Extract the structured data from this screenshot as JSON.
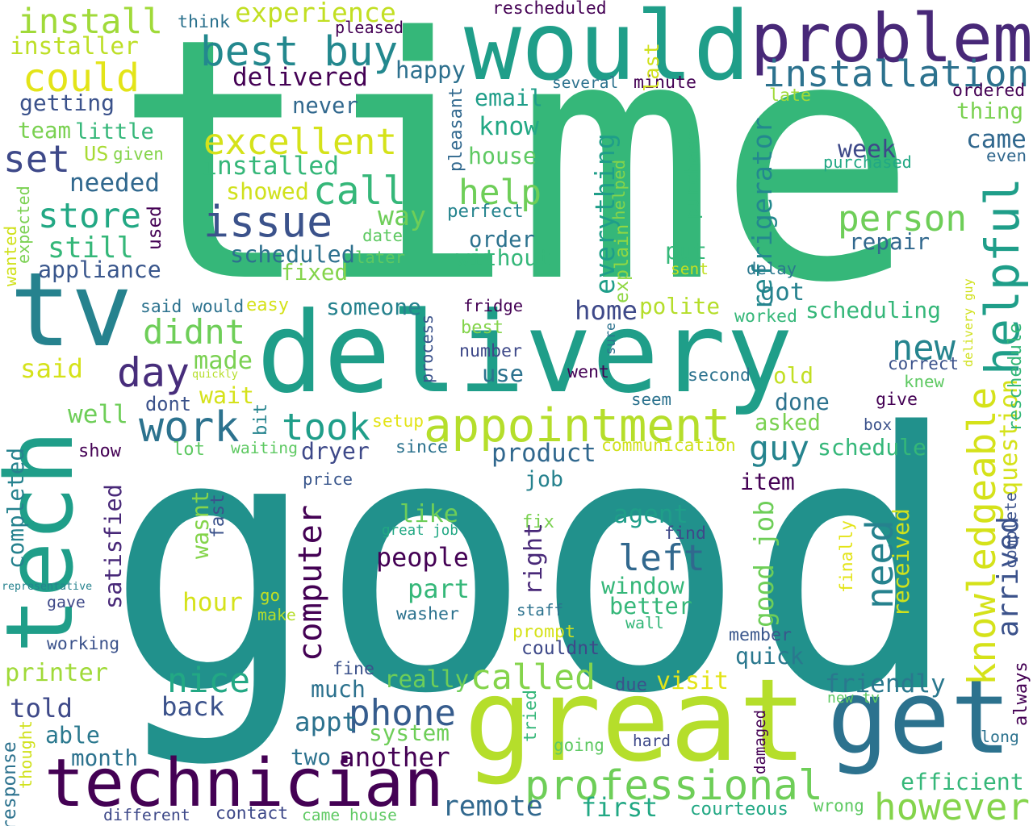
{
  "words": [
    {
      "text": "time",
      "color": "#35b779"
    },
    {
      "text": "good",
      "color": "#21918c"
    },
    {
      "text": "delivery",
      "color": "#1f9e89"
    },
    {
      "text": "great",
      "color": "#b5de2b"
    },
    {
      "text": "would",
      "color": "#1f9e89"
    },
    {
      "text": "problem",
      "color": "#482878"
    },
    {
      "text": "tech",
      "color": "#1f9e89"
    },
    {
      "text": "tv",
      "color": "#26828e"
    },
    {
      "text": "technician",
      "color": "#440154"
    },
    {
      "text": "get",
      "color": "#2c728e"
    },
    {
      "text": "appointment",
      "color": "#b5de2b"
    },
    {
      "text": "professional",
      "color": "#6ece58"
    },
    {
      "text": "installation",
      "color": "#2c728e"
    },
    {
      "text": "helpful",
      "color": "#1f9e89"
    },
    {
      "text": "issue",
      "color": "#3b528b"
    },
    {
      "text": "install",
      "color": "#a0da39"
    },
    {
      "text": "best buy",
      "color": "#23888e"
    },
    {
      "text": "could",
      "color": "#e3e418"
    },
    {
      "text": "excellent",
      "color": "#d5e21a"
    },
    {
      "text": "call",
      "color": "#35b779"
    },
    {
      "text": "person",
      "color": "#6ece58"
    },
    {
      "text": "knowledgeable",
      "color": "#d5e21a"
    },
    {
      "text": "need",
      "color": "#26828e"
    },
    {
      "text": "took",
      "color": "#1f9e89"
    },
    {
      "text": "work",
      "color": "#2c728e"
    },
    {
      "text": "day",
      "color": "#472d7b"
    },
    {
      "text": "left",
      "color": "#31688e"
    },
    {
      "text": "called",
      "color": "#84d44b"
    },
    {
      "text": "nice",
      "color": "#22a884"
    },
    {
      "text": "phone",
      "color": "#365c8d"
    },
    {
      "text": "however",
      "color": "#84d44b"
    },
    {
      "text": "computer",
      "color": "#440154"
    },
    {
      "text": "guy",
      "color": "#25848e"
    },
    {
      "text": "store",
      "color": "#22a884"
    },
    {
      "text": "still",
      "color": "#35b779"
    },
    {
      "text": "set",
      "color": "#3e4989"
    },
    {
      "text": "help",
      "color": "#6ece58"
    },
    {
      "text": "didnt",
      "color": "#6ece58"
    },
    {
      "text": "new",
      "color": "#25848e"
    },
    {
      "text": "refrigerator",
      "color": "#23888e"
    },
    {
      "text": "arrived",
      "color": "#3b528b"
    },
    {
      "text": "question",
      "color": "#d5e21a"
    },
    {
      "text": "installed",
      "color": "#35b779"
    },
    {
      "text": "experience",
      "color": "#c2df23"
    },
    {
      "text": "installer",
      "color": "#bddf26"
    },
    {
      "text": "happy",
      "color": "#2d708e"
    },
    {
      "text": "delivered",
      "color": "#440154"
    },
    {
      "text": "getting",
      "color": "#3b528b"
    },
    {
      "text": "team",
      "color": "#7ad151"
    },
    {
      "text": "little",
      "color": "#35b779"
    },
    {
      "text": "US",
      "color": "#a8db34"
    },
    {
      "text": "given",
      "color": "#84d44b"
    },
    {
      "text": "needed",
      "color": "#31688e"
    },
    {
      "text": "showed",
      "color": "#d0e11c"
    },
    {
      "text": "scheduled",
      "color": "#2d708e"
    },
    {
      "text": "appliance",
      "color": "#39568c"
    },
    {
      "text": "fixed",
      "color": "#84d44b"
    },
    {
      "text": "email",
      "color": "#1f9e89"
    },
    {
      "text": "know",
      "color": "#22a884"
    },
    {
      "text": "house",
      "color": "#5ec962"
    },
    {
      "text": "way",
      "color": "#6ece58"
    },
    {
      "text": "perfect",
      "color": "#25848e"
    },
    {
      "text": "order",
      "color": "#2c728e"
    },
    {
      "text": "without",
      "color": "#35b779"
    },
    {
      "text": "date",
      "color": "#5ec962"
    },
    {
      "text": "later",
      "color": "#5ec962"
    },
    {
      "text": "everything",
      "color": "#1f9e89"
    },
    {
      "text": "purchase",
      "color": "#35b779"
    },
    {
      "text": "put",
      "color": "#35b779"
    },
    {
      "text": "repair",
      "color": "#31688e"
    },
    {
      "text": "sent",
      "color": "#c2df23"
    },
    {
      "text": "delay",
      "color": "#2a788e"
    },
    {
      "text": "got",
      "color": "#26828e"
    },
    {
      "text": "scheduling",
      "color": "#35b779"
    },
    {
      "text": "polite",
      "color": "#b5de2b"
    },
    {
      "text": "worked",
      "color": "#35b779"
    },
    {
      "text": "home",
      "color": "#3e4989"
    },
    {
      "text": "someone",
      "color": "#26828e"
    },
    {
      "text": "fridge",
      "color": "#440154"
    },
    {
      "text": "said would",
      "color": "#2c728e"
    },
    {
      "text": "easy",
      "color": "#d5e21a"
    },
    {
      "text": "week",
      "color": "#3e4989"
    },
    {
      "text": "came",
      "color": "#31688e"
    },
    {
      "text": "even",
      "color": "#31688e"
    },
    {
      "text": "thing",
      "color": "#7ad151"
    },
    {
      "text": "purchased",
      "color": "#22a884"
    },
    {
      "text": "ordered",
      "color": "#440154"
    },
    {
      "text": "late",
      "color": "#a0da39"
    },
    {
      "text": "minute",
      "color": "#440154"
    },
    {
      "text": "several",
      "color": "#2c728e"
    },
    {
      "text": "never",
      "color": "#31688e"
    },
    {
      "text": "rescheduled",
      "color": "#440154"
    },
    {
      "text": "pleased",
      "color": "#440154"
    },
    {
      "text": "think",
      "color": "#2c728e"
    },
    {
      "text": "last",
      "color": "#d0e11c"
    },
    {
      "text": "pleasant",
      "color": "#31688e"
    },
    {
      "text": "explain",
      "color": "#90d743"
    },
    {
      "text": "helped",
      "color": "#84d44b"
    },
    {
      "text": "sure",
      "color": "#2c728e"
    },
    {
      "text": "said",
      "color": "#d5e21a"
    },
    {
      "text": "made",
      "color": "#7ad151"
    },
    {
      "text": "wait",
      "color": "#d5e21a"
    },
    {
      "text": "well",
      "color": "#6ece58"
    },
    {
      "text": "dont",
      "color": "#3b528b"
    },
    {
      "text": "quickly",
      "color": "#b5de2b"
    },
    {
      "text": "bit",
      "color": "#25848e"
    },
    {
      "text": "setup",
      "color": "#e3e418"
    },
    {
      "text": "waiting",
      "color": "#5ec962"
    },
    {
      "text": "show",
      "color": "#440154"
    },
    {
      "text": "lot",
      "color": "#5ec962"
    },
    {
      "text": "dryer",
      "color": "#3e4989"
    },
    {
      "text": "since",
      "color": "#2c728e"
    },
    {
      "text": "process",
      "color": "#3b528b"
    },
    {
      "text": "best",
      "color": "#84d44b"
    },
    {
      "text": "number",
      "color": "#3e4989"
    },
    {
      "text": "use",
      "color": "#2c728e"
    },
    {
      "text": "went",
      "color": "#440154"
    },
    {
      "text": "second",
      "color": "#2c728e"
    },
    {
      "text": "old",
      "color": "#c2df23"
    },
    {
      "text": "done",
      "color": "#2c728e"
    },
    {
      "text": "asked",
      "color": "#7ad151"
    },
    {
      "text": "schedule",
      "color": "#35b779"
    },
    {
      "text": "communication",
      "color": "#d0e11c"
    },
    {
      "text": "product",
      "color": "#31688e"
    },
    {
      "text": "seem",
      "color": "#2c728e"
    },
    {
      "text": "give",
      "color": "#440154"
    },
    {
      "text": "box",
      "color": "#3b528b"
    },
    {
      "text": "correct",
      "color": "#3b528b"
    },
    {
      "text": "knew",
      "color": "#5ec962"
    },
    {
      "text": "reschedule",
      "color": "#35b779"
    },
    {
      "text": "delivery guy",
      "color": "#d0e11c"
    },
    {
      "text": "expected",
      "color": "#7ad151"
    },
    {
      "text": "wanted",
      "color": "#d0e11c"
    },
    {
      "text": "used",
      "color": "#440154"
    },
    {
      "text": "completed",
      "color": "#26828e"
    },
    {
      "text": "satisfied",
      "color": "#482878"
    },
    {
      "text": "price",
      "color": "#39568c"
    },
    {
      "text": "job",
      "color": "#26828e"
    },
    {
      "text": "item",
      "color": "#440154"
    },
    {
      "text": "agent",
      "color": "#1f9e89"
    },
    {
      "text": "like",
      "color": "#6ece58"
    },
    {
      "text": "great job",
      "color": "#22a884"
    },
    {
      "text": "fix",
      "color": "#7ad151"
    },
    {
      "text": "find",
      "color": "#3e4989"
    },
    {
      "text": "people",
      "color": "#440154"
    },
    {
      "text": "right",
      "color": "#482878"
    },
    {
      "text": "part",
      "color": "#35b779"
    },
    {
      "text": "window",
      "color": "#35b779"
    },
    {
      "text": "better",
      "color": "#35b779"
    },
    {
      "text": "good job",
      "color": "#6ece58"
    },
    {
      "text": "received",
      "color": "#d0e11c"
    },
    {
      "text": "finally",
      "color": "#e3e418"
    },
    {
      "text": "complete",
      "color": "#3b528b"
    },
    {
      "text": "wasnt",
      "color": "#84d44b"
    },
    {
      "text": "fast",
      "color": "#3b528b"
    },
    {
      "text": "hour",
      "color": "#d5e21a"
    },
    {
      "text": "go",
      "color": "#c2df23"
    },
    {
      "text": "make",
      "color": "#b5de2b"
    },
    {
      "text": "washer",
      "color": "#2c728e"
    },
    {
      "text": "staff",
      "color": "#2c728e"
    },
    {
      "text": "prompt",
      "color": "#d5e21a"
    },
    {
      "text": "wall",
      "color": "#35b779"
    },
    {
      "text": "member",
      "color": "#39568c"
    },
    {
      "text": "couldnt",
      "color": "#3e4989"
    },
    {
      "text": "quick",
      "color": "#2a788e"
    },
    {
      "text": "representative",
      "color": "#26828e"
    },
    {
      "text": "gave",
      "color": "#3e4989"
    },
    {
      "text": "working",
      "color": "#3b528b"
    },
    {
      "text": "printer",
      "color": "#a0da39"
    },
    {
      "text": "told",
      "color": "#3e4989"
    },
    {
      "text": "able",
      "color": "#2a788e"
    },
    {
      "text": "month",
      "color": "#2c728e"
    },
    {
      "text": "fine",
      "color": "#3b528b"
    },
    {
      "text": "much",
      "color": "#2c728e"
    },
    {
      "text": "back",
      "color": "#3b528b"
    },
    {
      "text": "really",
      "color": "#6ece58"
    },
    {
      "text": "visit",
      "color": "#e3e418"
    },
    {
      "text": "due",
      "color": "#3b528b"
    },
    {
      "text": "friendly",
      "color": "#2a788e"
    },
    {
      "text": "new tv",
      "color": "#5ec962"
    },
    {
      "text": "always",
      "color": "#440154"
    },
    {
      "text": "appt",
      "color": "#2c728e"
    },
    {
      "text": "system",
      "color": "#6ece58"
    },
    {
      "text": "tried",
      "color": "#35b779"
    },
    {
      "text": "going",
      "color": "#5ec962"
    },
    {
      "text": "hard",
      "color": "#3e4989"
    },
    {
      "text": "damaged",
      "color": "#440154"
    },
    {
      "text": "long",
      "color": "#2c728e"
    },
    {
      "text": "two",
      "color": "#2c728e"
    },
    {
      "text": "another",
      "color": "#440154"
    },
    {
      "text": "efficient",
      "color": "#35b779"
    },
    {
      "text": "remote",
      "color": "#31688e"
    },
    {
      "text": "first",
      "color": "#22a884"
    },
    {
      "text": "courteous",
      "color": "#22a884"
    },
    {
      "text": "wrong",
      "color": "#5ec962"
    },
    {
      "text": "response",
      "color": "#2c728e"
    },
    {
      "text": "thought",
      "color": "#d0e11c"
    },
    {
      "text": "different",
      "color": "#3e4989"
    },
    {
      "text": "contact",
      "color": "#3e4989"
    },
    {
      "text": "came house",
      "color": "#5ec962"
    }
  ]
}
